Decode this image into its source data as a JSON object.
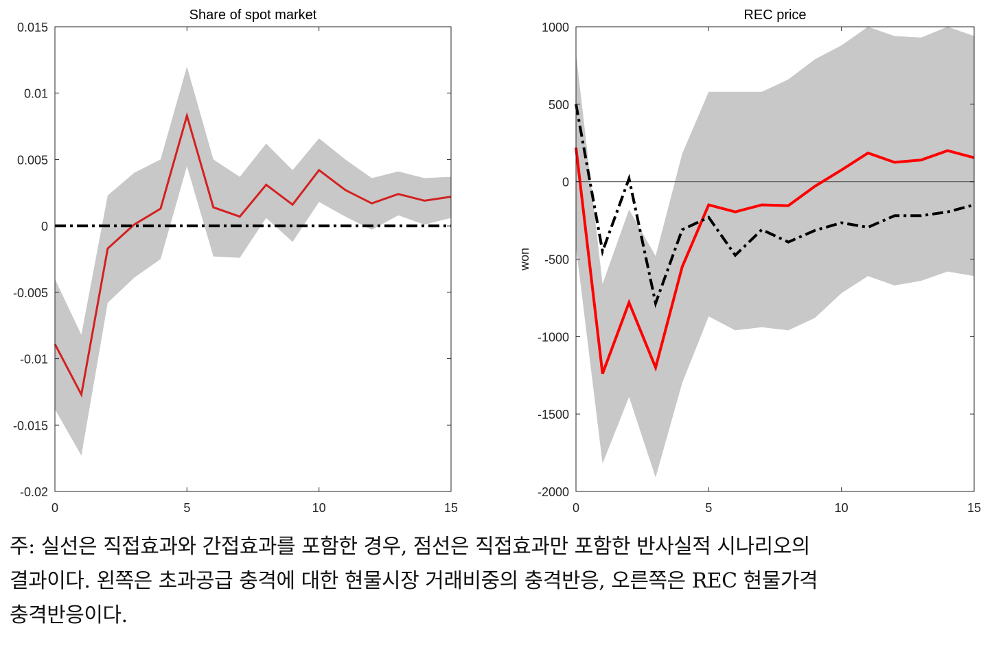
{
  "chart_data": [
    {
      "type": "line",
      "title": "Share of spot market",
      "xlabel": "",
      "ylabel": "",
      "xlim": [
        0,
        15
      ],
      "ylim": [
        -0.02,
        0.015
      ],
      "xticks": [
        0,
        5,
        10,
        15
      ],
      "xtick_labels": [
        "0",
        "5",
        "10",
        "15"
      ],
      "yticks": [
        0.015,
        0.01,
        0.005,
        0,
        -0.005,
        -0.01,
        -0.015,
        -0.02
      ],
      "ytick_labels": [
        "0.015",
        "0.01",
        "0.005",
        "0",
        "-0.005",
        "-0.01",
        "-0.015",
        "-0.02"
      ],
      "x": [
        0,
        1,
        2,
        3,
        4,
        5,
        6,
        7,
        8,
        9,
        10,
        11,
        12,
        13,
        14,
        15
      ],
      "band": {
        "upper": [
          -0.004,
          -0.0082,
          0.0023,
          0.004,
          0.005,
          0.012,
          0.005,
          0.0037,
          0.0062,
          0.0042,
          0.0066,
          0.005,
          0.0036,
          0.0041,
          0.0036,
          0.0037
        ],
        "lower": [
          -0.0138,
          -0.0173,
          -0.0058,
          -0.0039,
          -0.0025,
          0.0045,
          -0.0023,
          -0.0024,
          0.0006,
          -0.0012,
          0.0018,
          0.0007,
          -0.0003,
          0.0008,
          0.0001,
          0.0006
        ],
        "color": "#c8c8c8"
      },
      "series": [
        {
          "values": [
            -0.0089,
            -0.0127,
            -0.0017,
            0.0001,
            0.0013,
            0.0083,
            0.0014,
            0.0007,
            0.0031,
            0.0016,
            0.0042,
            0.0027,
            0.0017,
            0.0024,
            0.0019,
            0.0022
          ],
          "color": "#d42020",
          "style": "solid"
        },
        {
          "values": [
            0,
            0,
            0,
            0,
            0,
            0,
            0,
            0,
            0,
            0,
            0,
            0,
            0,
            0,
            0,
            0
          ],
          "color": "#000000",
          "style": "dash-dot"
        }
      ],
      "grid": false
    },
    {
      "type": "line",
      "title": "REC price",
      "xlabel": "",
      "ylabel": "won",
      "xlim": [
        0,
        15
      ],
      "ylim": [
        -2000,
        1000
      ],
      "xticks": [
        0,
        5,
        10,
        15
      ],
      "xtick_labels": [
        "0",
        "5",
        "10",
        "15"
      ],
      "yticks": [
        1000,
        500,
        0,
        -500,
        -1000,
        -1500,
        -2000
      ],
      "ytick_labels": [
        "1000",
        "500",
        "0",
        "-500",
        "-1000",
        "-1500",
        "-2000"
      ],
      "x": [
        0,
        1,
        2,
        3,
        4,
        5,
        6,
        7,
        8,
        9,
        10,
        11,
        12,
        13,
        14,
        15
      ],
      "band": {
        "upper": [
          830,
          -660,
          -180,
          -480,
          180,
          580,
          580,
          580,
          660,
          790,
          880,
          1000,
          940,
          930,
          1000,
          940
        ],
        "lower": [
          -420,
          -1820,
          -1390,
          -1910,
          -1300,
          -870,
          -960,
          -940,
          -960,
          -880,
          -720,
          -610,
          -670,
          -640,
          -580,
          -610
        ],
        "color": "#c8c8c8"
      },
      "series": [
        {
          "values": [
            220,
            -1240,
            -780,
            -1200,
            -550,
            -150,
            -195,
            -150,
            -155,
            -30,
            75,
            185,
            125,
            140,
            200,
            155
          ],
          "color": "#ff0000",
          "style": "solid"
        },
        {
          "values": [
            500,
            -450,
            20,
            -785,
            -310,
            -230,
            -475,
            -310,
            -390,
            -315,
            -265,
            -295,
            -220,
            -220,
            -195,
            -150
          ],
          "color": "#000000",
          "style": "dash-dot"
        }
      ],
      "zero_line": true,
      "grid": false
    }
  ],
  "note": {
    "line1": "주: 실선은 직접효과와 간접효과를 포함한 경우, 점선은 직접효과만 포함한 반사실적 시나리오의",
    "line2": "결과이다. 왼쪽은 초과공급 충격에 대한 현물시장 거래비중의 충격반응, 오른쪽은 REC 현물가격",
    "line3": "충격반응이다."
  }
}
